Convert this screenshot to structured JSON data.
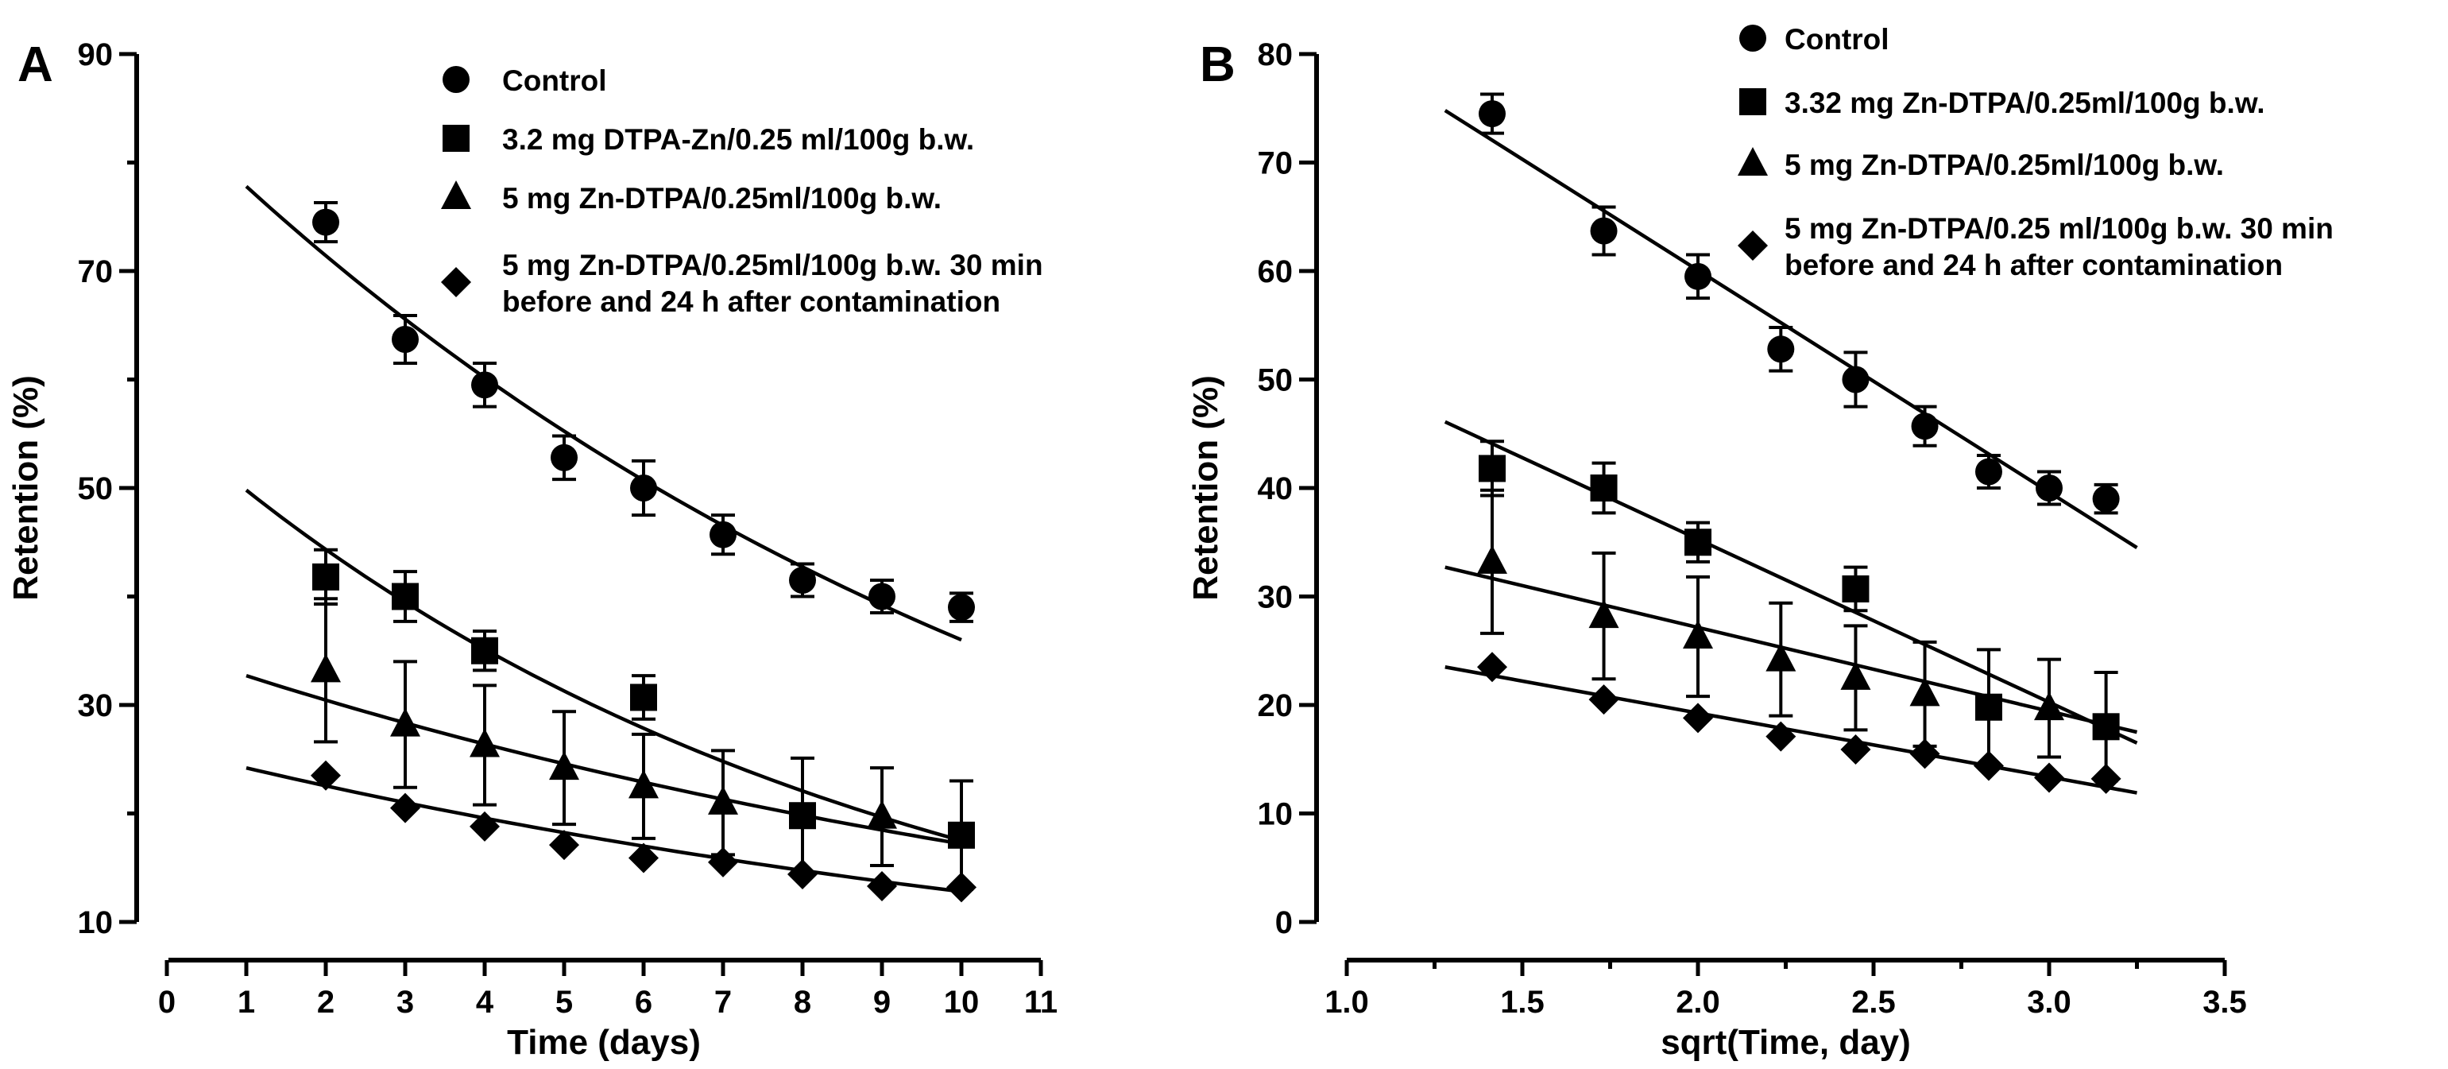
{
  "chart_data": [
    {
      "panel": "A",
      "type": "scatter",
      "xlabel": "Time (days)",
      "ylabel": "Retention (%)",
      "xlim": [
        0,
        11
      ],
      "ylim": [
        10,
        90
      ],
      "xticks": [
        0,
        1,
        2,
        3,
        4,
        5,
        6,
        7,
        8,
        9,
        10,
        11
      ],
      "yticks_major": [
        10,
        30,
        50,
        70,
        90
      ],
      "yticks_minor": [
        20,
        40,
        60,
        80
      ],
      "legend_position": "top-right",
      "series": [
        {
          "name": "Control",
          "marker": "circle",
          "legend_lines": [
            "Control"
          ],
          "points": [
            {
              "x": 2,
              "y": 74.5,
              "err": 1.8
            },
            {
              "x": 3,
              "y": 63.7,
              "err": 2.2
            },
            {
              "x": 4,
              "y": 59.5,
              "err": 2.0
            },
            {
              "x": 5,
              "y": 52.8,
              "err": 2.0
            },
            {
              "x": 6,
              "y": 50.0,
              "err": 2.5
            },
            {
              "x": 7,
              "y": 45.7,
              "err": 1.8
            },
            {
              "x": 8,
              "y": 41.5,
              "err": 1.5
            },
            {
              "x": 9,
              "y": 40.0,
              "err": 1.5
            },
            {
              "x": 10,
              "y": 39.0,
              "err": 1.3
            }
          ],
          "fit": {
            "kind": "exponential",
            "x_range": [
              1,
              10
            ],
            "y_start": 77.8,
            "y_end": 36.0
          }
        },
        {
          "name": "3.2 mg DTPA-Zn/0.25 ml/100g b.w.",
          "marker": "square",
          "legend_lines": [
            "3.2 mg DTPA-Zn/0.25 ml/100g b.w."
          ],
          "points": [
            {
              "x": 2,
              "y": 41.8,
              "err": 2.5
            },
            {
              "x": 3,
              "y": 40.0,
              "err": 2.3
            },
            {
              "x": 4,
              "y": 35.0,
              "err": 1.8
            },
            {
              "x": 6,
              "y": 30.7,
              "err": 2.0
            },
            {
              "x": 8,
              "y": 19.8,
              "err": 5.3
            },
            {
              "x": 10,
              "y": 18.0,
              "err": 5.0
            }
          ],
          "fit": {
            "kind": "exponential",
            "x_range": [
              1,
              10
            ],
            "y_start": 49.8,
            "y_end": 17.5
          }
        },
        {
          "name": "5 mg Zn-DTPA/0.25ml/100g b.w.",
          "marker": "triangle",
          "legend_lines": [
            "5 mg Zn-DTPA/0.25ml/100g b.w."
          ],
          "points": [
            {
              "x": 2,
              "y": 33.2,
              "err": 6.6
            },
            {
              "x": 3,
              "y": 28.2,
              "err": 5.8
            },
            {
              "x": 4,
              "y": 26.3,
              "err": 5.5
            },
            {
              "x": 5,
              "y": 24.2,
              "err": 5.2
            },
            {
              "x": 6,
              "y": 22.5,
              "err": 4.8
            },
            {
              "x": 7,
              "y": 21.0,
              "err": 4.8
            },
            {
              "x": 9,
              "y": 19.7,
              "err": 4.5
            }
          ],
          "fit": {
            "kind": "exponential",
            "x_range": [
              1,
              10
            ],
            "y_start": 32.7,
            "y_end": 17.2
          }
        },
        {
          "name": "5 mg Zn-DTPA/0.25ml/100g b.w. 30 min before and 24 h after contamination",
          "marker": "diamond",
          "legend_lines": [
            "5 mg Zn-DTPA/0.25ml/100g b.w. 30 min",
            "before and 24 h after contamination"
          ],
          "points": [
            {
              "x": 2,
              "y": 23.5,
              "err": 0
            },
            {
              "x": 3,
              "y": 20.5,
              "err": 0
            },
            {
              "x": 4,
              "y": 18.8,
              "err": 0
            },
            {
              "x": 5,
              "y": 17.1,
              "err": 0
            },
            {
              "x": 6,
              "y": 15.9,
              "err": 0
            },
            {
              "x": 7,
              "y": 15.5,
              "err": 0
            },
            {
              "x": 8,
              "y": 14.4,
              "err": 0
            },
            {
              "x": 9,
              "y": 13.3,
              "err": 0
            },
            {
              "x": 10,
              "y": 13.2,
              "err": 0
            }
          ],
          "fit": {
            "kind": "exponential",
            "x_range": [
              1,
              10
            ],
            "y_start": 24.2,
            "y_end": 12.8
          }
        }
      ]
    },
    {
      "panel": "B",
      "type": "scatter",
      "xlabel": "sqrt(Time, day)",
      "ylabel": "Retention (%)",
      "xlim": [
        1.0,
        3.5
      ],
      "ylim": [
        0,
        80
      ],
      "xticks": [
        "1.0",
        "1.5",
        "2.0",
        "2.5",
        "3.0",
        "3.5"
      ],
      "xticks_minor": [
        1.25,
        1.75,
        2.25,
        2.75,
        3.25
      ],
      "yticks_major": [
        0,
        10,
        20,
        30,
        40,
        50,
        60,
        70,
        80
      ],
      "legend_position": "top-right",
      "series": [
        {
          "name": "Control",
          "marker": "circle",
          "legend_lines": [
            "Control"
          ],
          "points": [
            {
              "x": 1.414,
              "y": 74.5,
              "err": 1.8
            },
            {
              "x": 1.732,
              "y": 63.7,
              "err": 2.2
            },
            {
              "x": 2.0,
              "y": 59.5,
              "err": 2.0
            },
            {
              "x": 2.236,
              "y": 52.8,
              "err": 2.0
            },
            {
              "x": 2.449,
              "y": 50.0,
              "err": 2.5
            },
            {
              "x": 2.646,
              "y": 45.7,
              "err": 1.8
            },
            {
              "x": 2.828,
              "y": 41.5,
              "err": 1.5
            },
            {
              "x": 3.0,
              "y": 40.0,
              "err": 1.5
            },
            {
              "x": 3.162,
              "y": 39.0,
              "err": 1.3
            }
          ],
          "fit": {
            "kind": "linear",
            "x_range": [
              1.28,
              3.25
            ],
            "y_start": 74.8,
            "y_end": 34.5
          }
        },
        {
          "name": "3.32 mg Zn-DTPA/0.25ml/100g b.w.",
          "marker": "square",
          "legend_lines": [
            "3.32 mg Zn-DTPA/0.25ml/100g b.w."
          ],
          "points": [
            {
              "x": 1.414,
              "y": 41.8,
              "err": 2.5
            },
            {
              "x": 1.732,
              "y": 40.0,
              "err": 2.3
            },
            {
              "x": 2.0,
              "y": 35.0,
              "err": 1.8
            },
            {
              "x": 2.449,
              "y": 30.7,
              "err": 2.0
            },
            {
              "x": 2.828,
              "y": 19.8,
              "err": 5.3
            },
            {
              "x": 3.162,
              "y": 18.0,
              "err": 5.0
            }
          ],
          "fit": {
            "kind": "linear",
            "x_range": [
              1.28,
              3.25
            ],
            "y_start": 46.1,
            "y_end": 16.5
          }
        },
        {
          "name": "5 mg Zn-DTPA/0.25ml/100g b.w.",
          "marker": "triangle",
          "legend_lines": [
            "5 mg Zn-DTPA/0.25ml/100g b.w."
          ],
          "points": [
            {
              "x": 1.414,
              "y": 33.2,
              "err": 6.6
            },
            {
              "x": 1.732,
              "y": 28.2,
              "err": 5.8
            },
            {
              "x": 2.0,
              "y": 26.3,
              "err": 5.5
            },
            {
              "x": 2.236,
              "y": 24.2,
              "err": 5.2
            },
            {
              "x": 2.449,
              "y": 22.5,
              "err": 4.8
            },
            {
              "x": 2.646,
              "y": 21.0,
              "err": 4.8
            },
            {
              "x": 3.0,
              "y": 19.7,
              "err": 4.5
            }
          ],
          "fit": {
            "kind": "linear",
            "x_range": [
              1.28,
              3.25
            ],
            "y_start": 32.7,
            "y_end": 17.5
          }
        },
        {
          "name": "5 mg Zn-DTPA/0.25 ml/100g b.w. 30 min before and 24 h after contamination",
          "marker": "diamond",
          "legend_lines": [
            "5 mg Zn-DTPA/0.25 ml/100g b.w. 30 min",
            "before and 24 h after contamination"
          ],
          "points": [
            {
              "x": 1.414,
              "y": 23.5,
              "err": 0
            },
            {
              "x": 1.732,
              "y": 20.5,
              "err": 0
            },
            {
              "x": 2.0,
              "y": 18.8,
              "err": 0
            },
            {
              "x": 2.236,
              "y": 17.1,
              "err": 0
            },
            {
              "x": 2.449,
              "y": 15.9,
              "err": 0
            },
            {
              "x": 2.646,
              "y": 15.5,
              "err": 0
            },
            {
              "x": 2.828,
              "y": 14.4,
              "err": 0
            },
            {
              "x": 3.0,
              "y": 13.3,
              "err": 0
            },
            {
              "x": 3.162,
              "y": 13.2,
              "err": 0
            }
          ],
          "fit": {
            "kind": "linear",
            "x_range": [
              1.28,
              3.25
            ],
            "y_start": 23.5,
            "y_end": 11.9
          }
        }
      ]
    }
  ]
}
